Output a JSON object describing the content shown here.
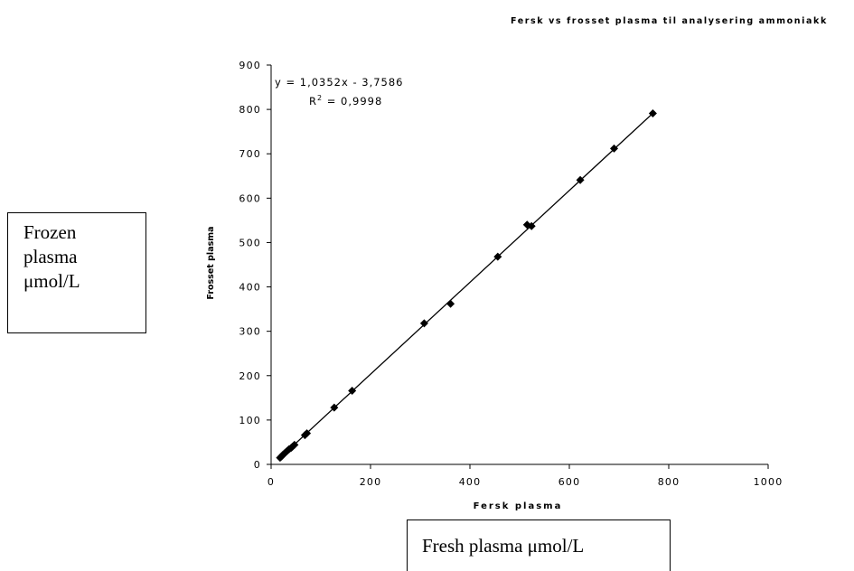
{
  "chart_data": {
    "type": "scatter",
    "title": "Fersk vs frosset plasma til analysering ammoniakk",
    "xlabel": "Fersk plasma",
    "ylabel": "Frosset plasma",
    "xlim": [
      0,
      1000
    ],
    "ylim": [
      0,
      900
    ],
    "xticks": [
      "0",
      "200",
      "400",
      "600",
      "800",
      "1000"
    ],
    "yticks": [
      "0",
      "100",
      "200",
      "300",
      "400",
      "500",
      "600",
      "700",
      "800",
      "900"
    ],
    "grid": false,
    "legend": "none",
    "trendline": {
      "slope": 1.0352,
      "intercept": -3.7586,
      "equation": "y = 1,0352x - 3,7586",
      "r2_label": "R",
      "r2_sup": "2",
      "r2_value": " = 0,9998"
    },
    "series": [
      {
        "x": [
          18,
          20,
          22,
          24,
          27,
          30,
          33,
          36,
          40,
          43,
          47,
          68,
          72,
          127,
          163,
          308,
          361,
          456,
          515,
          524,
          622,
          690,
          768
        ],
        "y": [
          15,
          17,
          19,
          22,
          25,
          28,
          31,
          34,
          37,
          40,
          44,
          66,
          70,
          128,
          166,
          318,
          362,
          468,
          540,
          537,
          641,
          712,
          791
        ]
      }
    ],
    "marker_color": "#000000",
    "line_color": "#000000"
  },
  "annotations": {
    "frozen_line1": "Frozen",
    "frozen_line2": "plasma",
    "frozen_line3": "μmol/L",
    "fresh": "Fresh plasma μmol/L"
  }
}
